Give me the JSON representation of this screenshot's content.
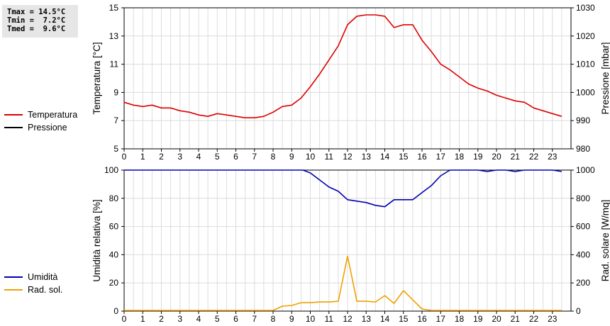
{
  "stats": {
    "tmax": "Tmax = 14.5°C",
    "tmin": "Tmin =  7.2°C",
    "tmed": "Tmed =  9.6°C"
  },
  "legend_top": [
    {
      "label": "Temperatura",
      "color": "#dd0000"
    },
    {
      "label": "Pressione",
      "color": "#000000"
    }
  ],
  "legend_bottom": [
    {
      "label": "Umidità",
      "color": "#0000b0"
    },
    {
      "label": "Rad. sol.",
      "color": "#f0a000"
    }
  ],
  "chart_data": [
    {
      "type": "line",
      "xlabel": "",
      "x_ticks": [
        "0",
        "1",
        "2",
        "3",
        "4",
        "5",
        "6",
        "7",
        "8",
        "9",
        "10",
        "11",
        "12",
        "13",
        "14",
        "15",
        "16",
        "17",
        "18",
        "19",
        "20",
        "21",
        "22",
        "23"
      ],
      "xlim": [
        0,
        24
      ],
      "y_left": {
        "label": "Temperatura [°C]",
        "lim": [
          5,
          15
        ],
        "ticks": [
          "5",
          "7",
          "9",
          "11",
          "13",
          "15"
        ]
      },
      "y_right": {
        "label": "Pressione [mbar]",
        "lim": [
          980,
          1030
        ],
        "ticks": [
          "980",
          "990",
          "1000",
          "1010",
          "1020",
          "1030"
        ]
      },
      "grid": true,
      "series": [
        {
          "name": "Temperatura",
          "axis": "left",
          "color": "#dd0000",
          "x": [
            0,
            0.5,
            1,
            1.5,
            2,
            2.5,
            3,
            3.5,
            4,
            4.5,
            5,
            5.5,
            6,
            6.5,
            7,
            7.5,
            8,
            8.5,
            9,
            9.5,
            10,
            10.5,
            11,
            11.5,
            12,
            12.5,
            13,
            13.5,
            14,
            14.5,
            15,
            15.5,
            16,
            16.5,
            17,
            17.5,
            18,
            18.5,
            19,
            19.5,
            20,
            20.5,
            21,
            21.5,
            22,
            22.5,
            23,
            23.5
          ],
          "y": [
            8.3,
            8.1,
            8.0,
            8.1,
            7.9,
            7.9,
            7.7,
            7.6,
            7.4,
            7.3,
            7.5,
            7.4,
            7.3,
            7.2,
            7.2,
            7.3,
            7.6,
            8.0,
            8.1,
            8.6,
            9.4,
            10.3,
            11.3,
            12.3,
            13.8,
            14.4,
            14.5,
            14.5,
            14.4,
            13.6,
            13.8,
            13.8,
            12.7,
            11.9,
            11.0,
            10.6,
            10.1,
            9.6,
            9.3,
            9.1,
            8.8,
            8.6,
            8.4,
            8.3,
            7.9,
            7.7,
            7.5,
            7.3
          ]
        }
      ]
    },
    {
      "type": "line",
      "xlabel": "",
      "x_ticks": [
        "0",
        "1",
        "2",
        "3",
        "4",
        "5",
        "6",
        "7",
        "8",
        "9",
        "10",
        "11",
        "12",
        "13",
        "14",
        "15",
        "16",
        "17",
        "18",
        "19",
        "20",
        "21",
        "22",
        "23"
      ],
      "xlim": [
        0,
        24
      ],
      "y_left": {
        "label": "Umidità relativa [%]",
        "lim": [
          0,
          100
        ],
        "ticks": [
          "0",
          "20",
          "40",
          "60",
          "80",
          "100"
        ]
      },
      "y_right": {
        "label": "Rad. solare [W/mq]",
        "lim": [
          0,
          1000
        ],
        "ticks": [
          "0",
          "200",
          "400",
          "600",
          "800",
          "1000"
        ]
      },
      "grid": true,
      "series": [
        {
          "name": "Umidità",
          "axis": "left",
          "color": "#0000b0",
          "x": [
            0,
            1,
            2,
            3,
            4,
            5,
            6,
            7,
            8,
            9,
            9.6,
            10,
            10.5,
            11,
            11.5,
            12,
            12.5,
            13,
            13.5,
            14,
            14.5,
            15,
            15.5,
            16,
            16.5,
            17,
            17.5,
            18,
            18.5,
            19,
            19.5,
            20,
            20.5,
            21,
            21.5,
            22,
            22.5,
            23,
            23.5
          ],
          "y": [
            100,
            100,
            100,
            100,
            100,
            100,
            100,
            100,
            100,
            100,
            100,
            98,
            93,
            88,
            85,
            79,
            78,
            77,
            75,
            74,
            79,
            79,
            79,
            84,
            89,
            96,
            100,
            100,
            100,
            100,
            99,
            100,
            100,
            99,
            100,
            100,
            100,
            100,
            99
          ]
        },
        {
          "name": "Rad. sol.",
          "axis": "right",
          "color": "#f0a000",
          "x": [
            0,
            1,
            2,
            3,
            4,
            5,
            6,
            7,
            8,
            8.5,
            9,
            9.5,
            10,
            10.5,
            11,
            11.5,
            12,
            12.5,
            13,
            13.5,
            14,
            14.5,
            15,
            15.5,
            16,
            16.5,
            17,
            18,
            19,
            20,
            21,
            22,
            23,
            23.5
          ],
          "y": [
            5,
            5,
            5,
            5,
            5,
            5,
            5,
            5,
            5,
            35,
            40,
            60,
            60,
            65,
            65,
            70,
            390,
            70,
            70,
            65,
            110,
            55,
            145,
            80,
            15,
            5,
            5,
            5,
            5,
            5,
            5,
            5,
            5,
            5
          ]
        }
      ]
    }
  ]
}
